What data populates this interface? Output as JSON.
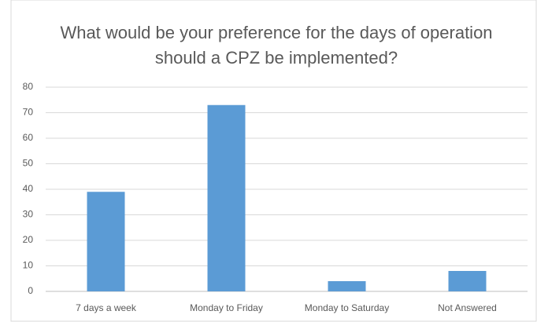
{
  "chart_data": {
    "type": "bar",
    "title": "What would be your preference for the days of operation should a CPZ be implemented?",
    "categories": [
      "7 days a week",
      "Monday to Friday",
      "Monday to Saturday",
      "Not Answered"
    ],
    "values": [
      39,
      73,
      4,
      8
    ],
    "color": "#5b9bd5",
    "ylim": [
      0,
      80
    ],
    "yticks": [
      0,
      10,
      20,
      30,
      40,
      50,
      60,
      70,
      80
    ],
    "grid": true
  }
}
